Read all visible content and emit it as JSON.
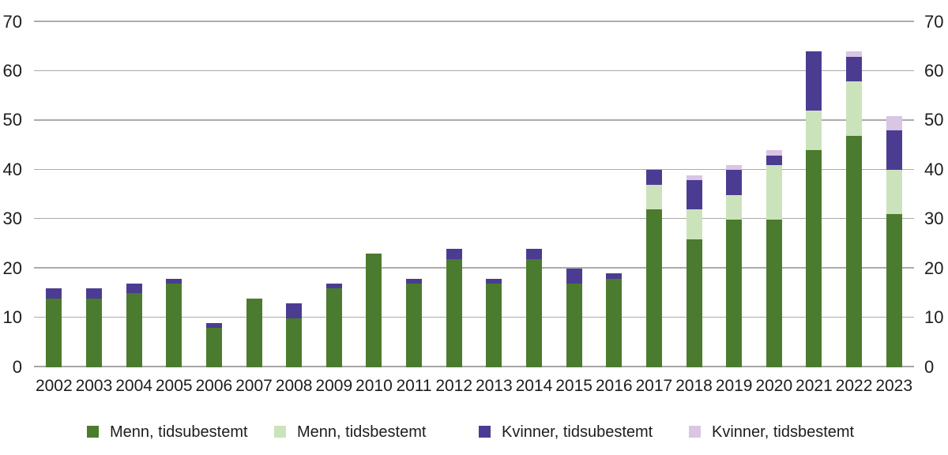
{
  "chart_data": {
    "type": "bar",
    "stacked": true,
    "title": "",
    "xlabel": "",
    "ylabel": "",
    "ylim": [
      0,
      70
    ],
    "yticks": [
      "0",
      "10",
      "20",
      "30",
      "40",
      "50",
      "60",
      "70"
    ],
    "ytick_values": [
      0,
      10,
      20,
      30,
      40,
      50,
      60,
      70
    ],
    "grid": true,
    "dual_axis_labels": true,
    "legend_position": "bottom",
    "categories": [
      "2002",
      "2003",
      "2004",
      "2005",
      "2006",
      "2007",
      "2008",
      "2009",
      "2010",
      "2011",
      "2012",
      "2013",
      "2014",
      "2015",
      "2016",
      "2017",
      "2018",
      "2019",
      "2020",
      "2021",
      "2022",
      "2023"
    ],
    "series": [
      {
        "name": "Menn, tidsubestemt",
        "color": "#4b7b2e",
        "values": [
          14,
          14,
          15,
          17,
          8,
          14,
          10,
          16,
          23,
          17,
          22,
          17,
          22,
          17,
          18,
          32,
          26,
          30,
          30,
          44,
          47,
          31
        ]
      },
      {
        "name": "Menn, tidsbestemt",
        "color": "#cbe3ba",
        "values": [
          0,
          0,
          0,
          0,
          0,
          0,
          0,
          0,
          0,
          0,
          0,
          0,
          0,
          0,
          0,
          5,
          6,
          5,
          11,
          8,
          11,
          9
        ]
      },
      {
        "name": "Kvinner, tidsubestemt",
        "color": "#4b3c92",
        "values": [
          2,
          2,
          2,
          1,
          1,
          0,
          3,
          1,
          0,
          1,
          2,
          1,
          2,
          3,
          1,
          3,
          6,
          5,
          2,
          12,
          5,
          8
        ]
      },
      {
        "name": "Kvinner, tidsbestemt",
        "color": "#d9c5e4",
        "values": [
          0,
          0,
          0,
          0,
          0,
          0,
          0,
          0,
          0,
          0,
          0,
          0,
          0,
          0,
          0,
          0,
          1,
          1,
          1,
          0,
          1,
          3
        ]
      }
    ],
    "totals": [
      16,
      16,
      17,
      18,
      9,
      14,
      13,
      17,
      23,
      18,
      24,
      18,
      24,
      20,
      19,
      40,
      39,
      41,
      44,
      64,
      64,
      51
    ],
    "colors": {
      "grid": "#ababab",
      "axis": "#a6a6a6",
      "text": "#1d1d1b",
      "background": "#ffffff"
    }
  }
}
